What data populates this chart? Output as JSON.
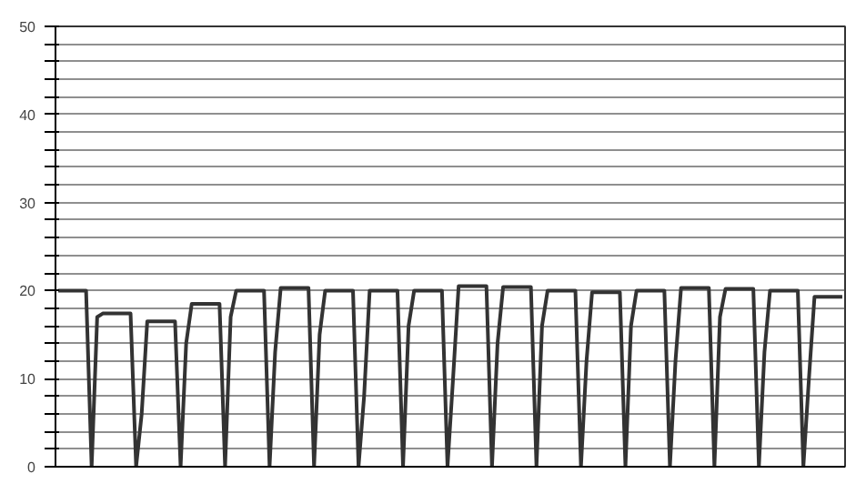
{
  "chart_data": {
    "type": "line",
    "relative": false,
    "categories": [
      null,
      null,
      null,
      null,
      null,
      null,
      null,
      null,
      null,
      null,
      null,
      null,
      null,
      null,
      null,
      null,
      null,
      null,
      null,
      null,
      null,
      null,
      null,
      null,
      null,
      null,
      null,
      null,
      null,
      null,
      null,
      null,
      null,
      null,
      null,
      null,
      null,
      null,
      null,
      null,
      null,
      null,
      null,
      null,
      null,
      null,
      null,
      null,
      null,
      null,
      null,
      null,
      null,
      null,
      null,
      null,
      null,
      null,
      null,
      null,
      null,
      null,
      null,
      null,
      null,
      null,
      null,
      null,
      null,
      null,
      null,
      null,
      null,
      null,
      null,
      null,
      null,
      null,
      null,
      null,
      null,
      null,
      null,
      null,
      null,
      null,
      null,
      null,
      null,
      null,
      null,
      null,
      null,
      null,
      null,
      null,
      null,
      null,
      null,
      null,
      null,
      null,
      null,
      null,
      null,
      null,
      null,
      null,
      null,
      null,
      null,
      null,
      null,
      null,
      null,
      null,
      null,
      null,
      null,
      null,
      null,
      null,
      null,
      null,
      null,
      null,
      null,
      null,
      null,
      null,
      null,
      null,
      null,
      null,
      null,
      null,
      null,
      null,
      null,
      null,
      null,
      null
    ],
    "series": [
      {
        "color": "#333333",
        "values": [
          20,
          20,
          20,
          20,
          20,
          20,
          0,
          17,
          17.4,
          17.4,
          17.4,
          17.4,
          17.4,
          17.4,
          0,
          6,
          16.5,
          16.5,
          16.5,
          16.5,
          16.5,
          16.5,
          0,
          14,
          18.5,
          18.5,
          18.5,
          18.5,
          18.5,
          18.5,
          0,
          17,
          20,
          20,
          20,
          20,
          20,
          20,
          0,
          13,
          20.3,
          20.3,
          20.3,
          20.3,
          20.3,
          20.3,
          0,
          15,
          20,
          20,
          20,
          20,
          20,
          20,
          0,
          8,
          20,
          20,
          20,
          20,
          20,
          20,
          0,
          16,
          20,
          20,
          20,
          20,
          20,
          20,
          0,
          10,
          20.5,
          20.5,
          20.5,
          20.5,
          20.5,
          20.5,
          0,
          14,
          20.4,
          20.4,
          20.4,
          20.4,
          20.4,
          20.4,
          0,
          16,
          20,
          20,
          20,
          20,
          20,
          20,
          0,
          12,
          19.8,
          19.8,
          19.8,
          19.8,
          19.8,
          19.8,
          0,
          16,
          20,
          20,
          20,
          20,
          20,
          20,
          0,
          12,
          20.3,
          20.3,
          20.3,
          20.3,
          20.3,
          20.3,
          0,
          17,
          20.2,
          20.2,
          20.2,
          20.2,
          20.2,
          20.2,
          0,
          13,
          20,
          20,
          20,
          20,
          20,
          20,
          0,
          10,
          19.3,
          19.3,
          19.3,
          19.3,
          19.3,
          19.3
        ]
      }
    ],
    "ylim": [
      0,
      50
    ],
    "yticks": [
      0,
      {
        "value": 2,
        "label": null
      },
      {
        "value": 4,
        "label": null
      },
      {
        "value": 6,
        "label": null
      },
      {
        "value": 8,
        "label": null
      },
      10,
      {
        "value": 12,
        "label": null
      },
      {
        "value": 14,
        "label": null
      },
      {
        "value": 16,
        "label": null
      },
      {
        "value": 18,
        "label": null
      },
      20,
      {
        "value": 22,
        "label": null
      },
      {
        "value": 24,
        "label": null
      },
      {
        "value": 26,
        "label": null
      },
      {
        "value": 28,
        "label": null
      },
      30,
      {
        "value": 32,
        "label": null
      },
      {
        "value": 34,
        "label": null
      },
      {
        "value": 36,
        "label": null
      },
      {
        "value": 38,
        "label": null
      },
      40,
      {
        "value": 42,
        "label": null
      },
      {
        "value": 44,
        "label": null
      },
      {
        "value": 46,
        "label": null
      },
      {
        "value": 48,
        "label": null
      },
      50
    ],
    "grid": "y",
    "marker": "none",
    "line_style": "solid",
    "tick_labels": "y"
  }
}
